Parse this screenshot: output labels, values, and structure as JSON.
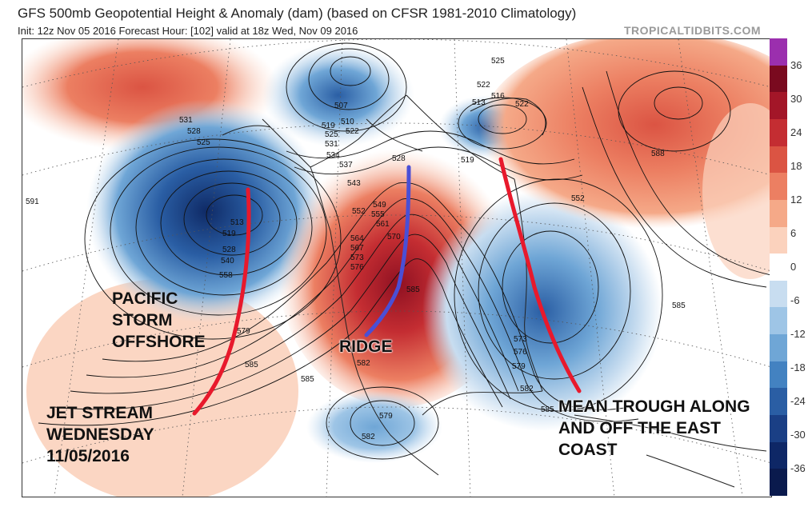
{
  "header": {
    "title": "GFS 500mb Geopotential Height & Anomaly (dam) (based on CFSR 1981-2010 Climatology)",
    "subtitle": "Init: 12z Nov 05 2016   Forecast Hour: [102]   valid at 18z Wed, Nov 09 2016",
    "credit": "TROPICALTIDBITS.COM"
  },
  "colorbar": {
    "labels": [
      "36",
      "30",
      "24",
      "18",
      "12",
      "6",
      "0",
      "-6",
      "-12",
      "-18",
      "-24",
      "-30",
      "-36"
    ],
    "colors": [
      "#9b2fae",
      "#7a0a1f",
      "#a31628",
      "#c42d32",
      "#db5443",
      "#ec7f62",
      "#f5a988",
      "#fbd2bd",
      "#ffffff",
      "#c8ddf0",
      "#9ec5e6",
      "#6fa6d6",
      "#4382c1",
      "#2a5ea4",
      "#1a3f85",
      "#0e2766",
      "#0a1a4d"
    ]
  },
  "height_labels": [
    "591",
    "531",
    "528",
    "525",
    "507",
    "510",
    "519",
    "522",
    "525",
    "531",
    "534",
    "537",
    "528",
    "543",
    "549",
    "552",
    "555",
    "561",
    "564",
    "567",
    "570",
    "573",
    "576",
    "579",
    "585",
    "585",
    "585",
    "582",
    "579",
    "582",
    "525",
    "522",
    "516",
    "513",
    "522",
    "519",
    "552",
    "588",
    "585",
    "573",
    "576",
    "579",
    "582",
    "585",
    "558",
    "540",
    "528",
    "519",
    "513"
  ],
  "annotations": {
    "pacific": "PACIFIC\nSTORM\nOFFSHORE",
    "jet": "JET STREAM\nWEDNESDAY\n11/05/2016",
    "ridge": "RIDGE",
    "trough": "MEAN TROUGH ALONG\nAND OFF THE EAST\nCOAST"
  },
  "annotation_colors": {
    "jet_line": "#e8192c",
    "ridge_line": "#4a4fd6"
  }
}
